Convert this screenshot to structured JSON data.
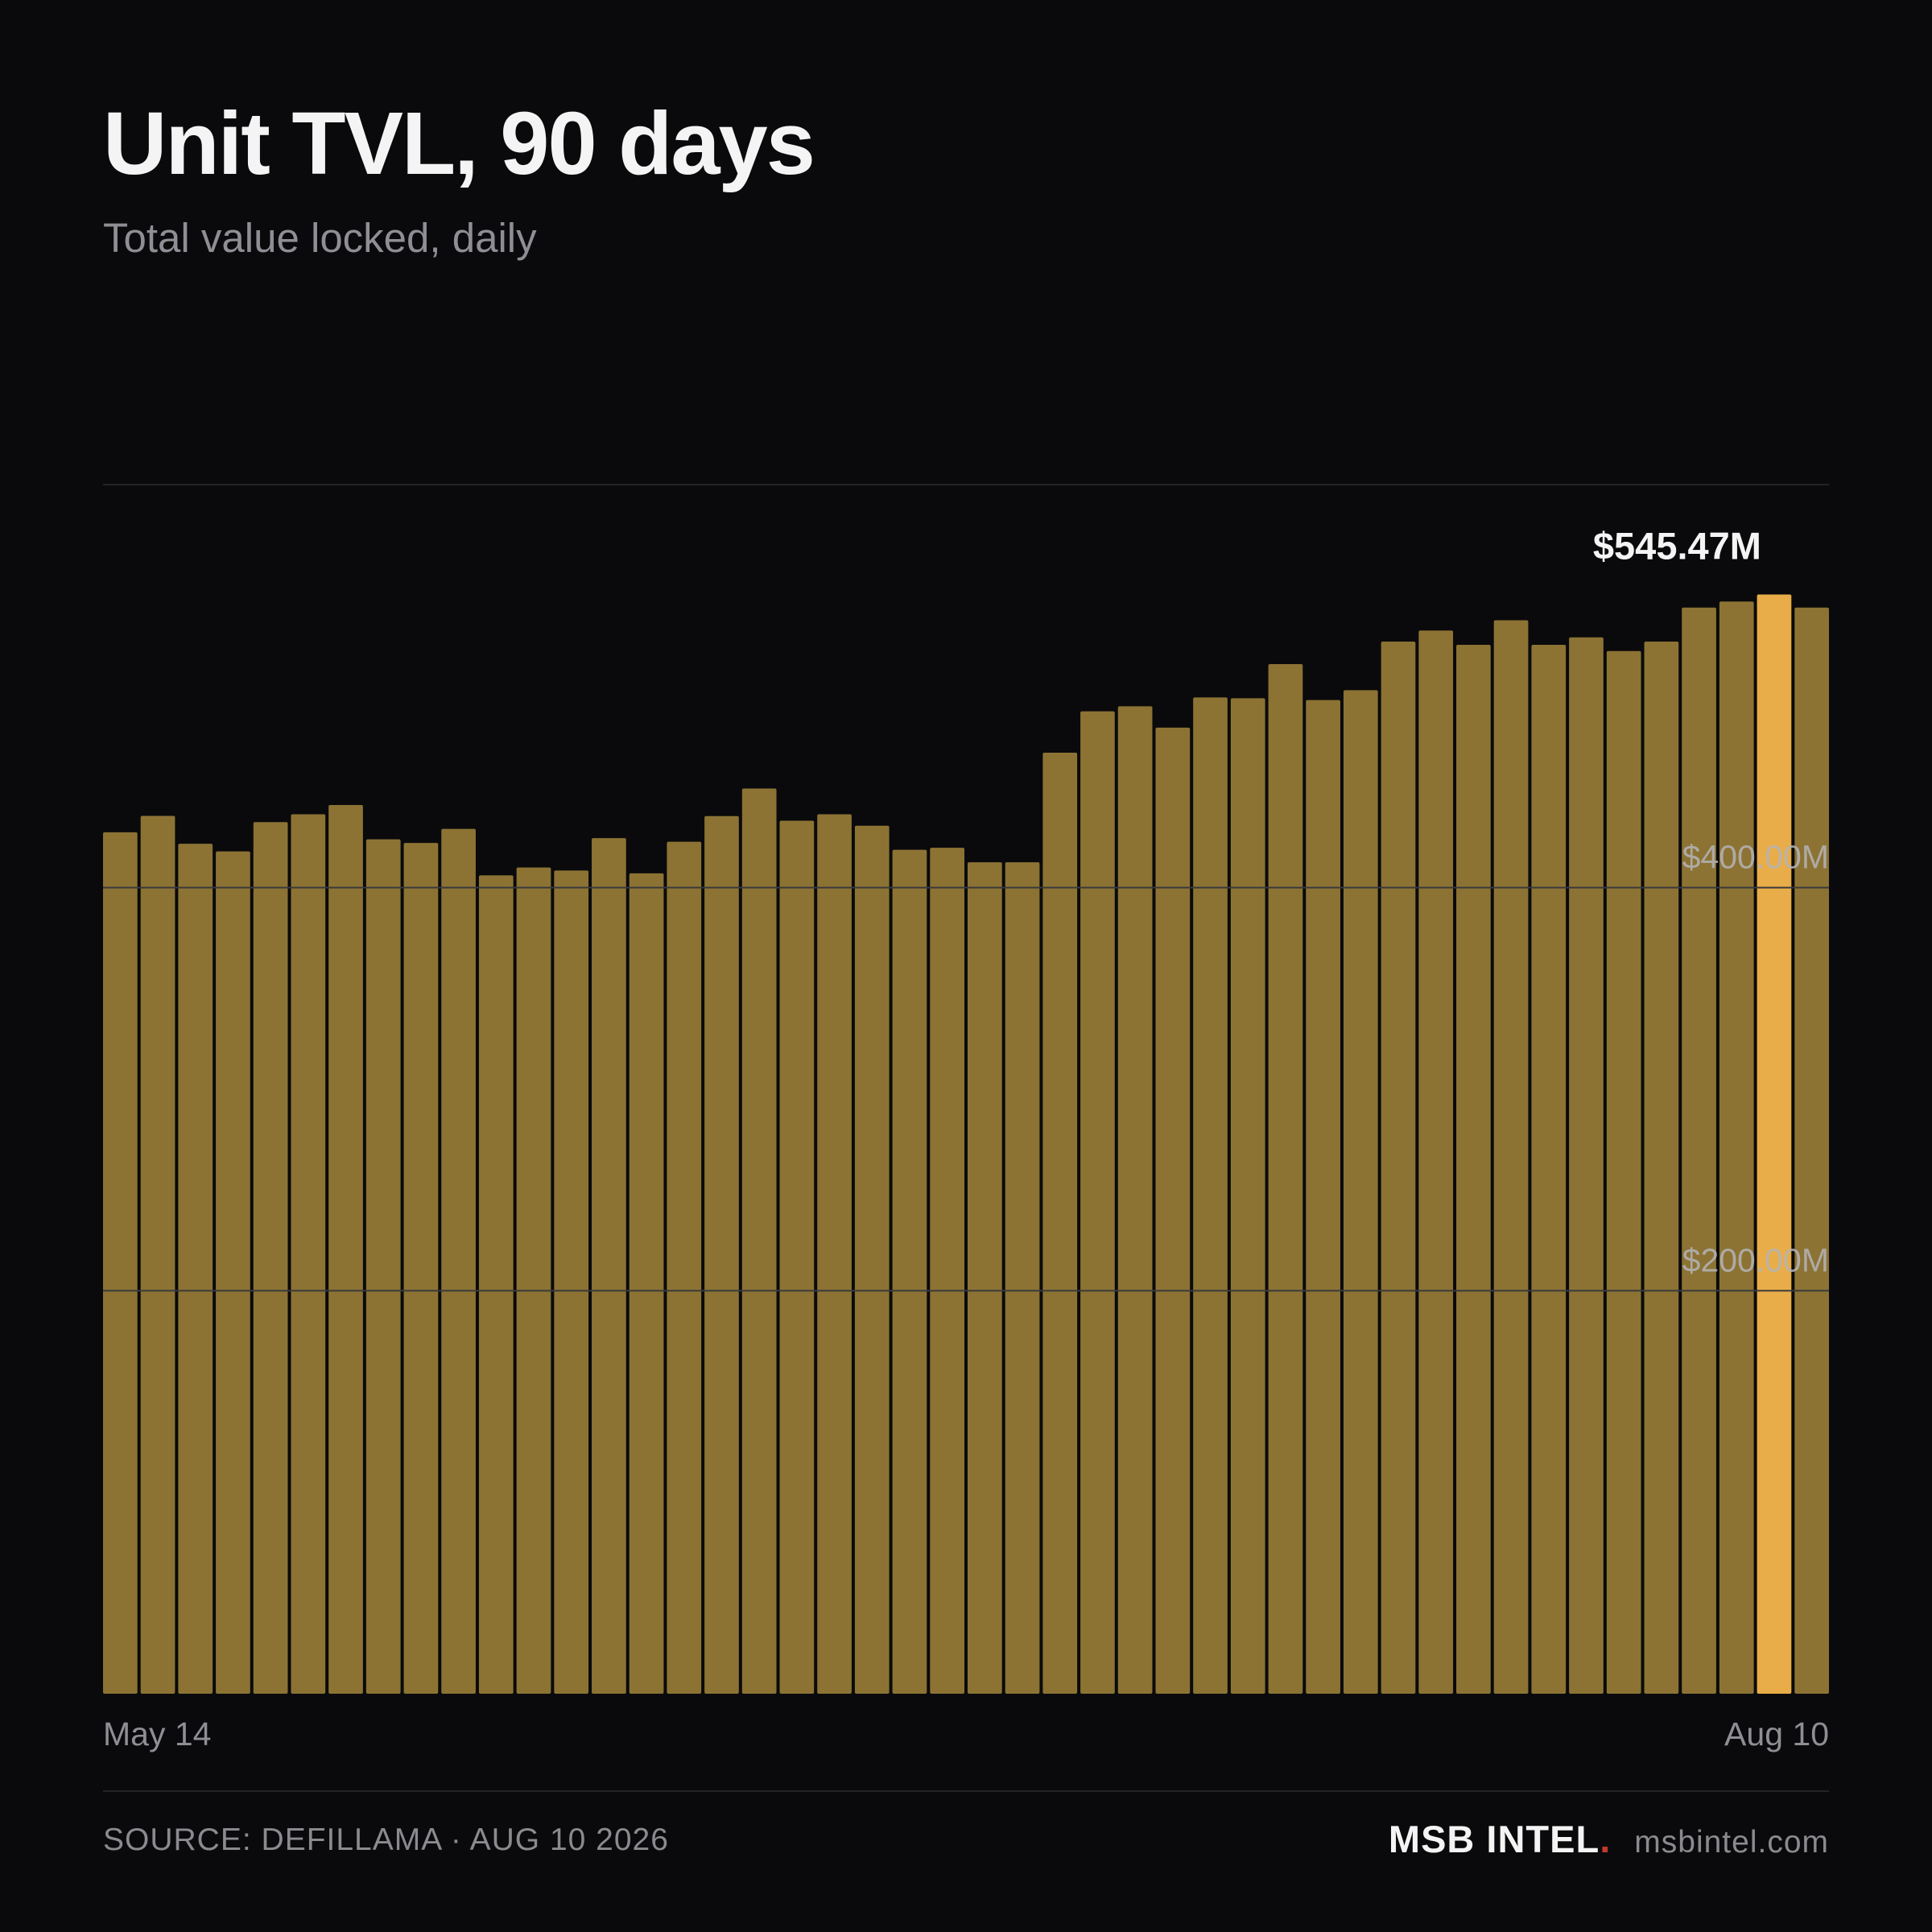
{
  "header": {
    "title": "Unit TVL, 90 days",
    "subtitle": "Total value locked, daily"
  },
  "footer": {
    "source": "SOURCE: DEFILLAMA · AUG 10 2026",
    "brand_name": "MSB INTEL",
    "brand_dot": ".",
    "brand_url": "msbintel.com"
  },
  "colors": {
    "background": "#0a0a0c",
    "bar": "#8c7334",
    "highlight_bar": "#e8ad48",
    "gridline": "#3a3a3d",
    "axis_label": "#8e8e94",
    "brand_accent": "#c0392b"
  },
  "chart_data": {
    "type": "bar",
    "title": "Unit TVL, 90 days",
    "subtitle": "Total value locked, daily",
    "x_start_label": "May 14",
    "x_end_label": "Aug 10",
    "ylim": [
      0,
      600
    ],
    "y_unit": "$M",
    "y_ticks": [
      {
        "value": 200,
        "label": "$200.00M"
      },
      {
        "value": 400,
        "label": "$400.00M"
      }
    ],
    "grid": true,
    "values": [
      427.5,
      435.6,
      421.8,
      418.0,
      432.5,
      436.4,
      441.0,
      424.0,
      422.2,
      429.2,
      406.1,
      410.0,
      408.5,
      424.6,
      407.1,
      422.8,
      435.5,
      449.2,
      433.2,
      436.4,
      430.7,
      418.8,
      419.8,
      412.6,
      412.6,
      467.0,
      487.5,
      490.0,
      479.4,
      494.4,
      494.0,
      510.9,
      493.1,
      498.0,
      522.1,
      527.6,
      520.5,
      532.7,
      520.5,
      524.2,
      517.4,
      522.1,
      539.0,
      542.0,
      545.47,
      539.0
    ],
    "highlight_index": 44,
    "highlight_label": "$545.47M"
  }
}
